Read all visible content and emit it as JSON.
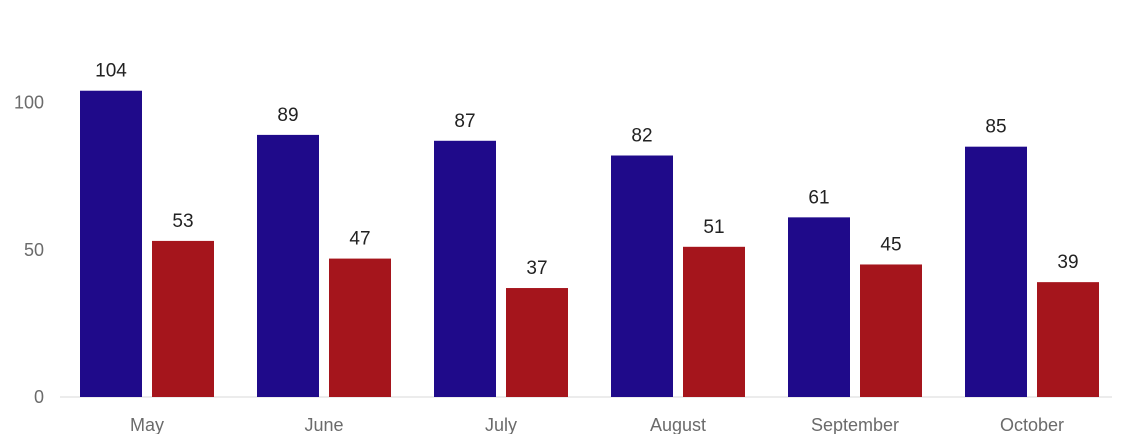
{
  "chart_data": {
    "type": "bar",
    "categories": [
      "May",
      "June",
      "July",
      "August",
      "September",
      "October"
    ],
    "series": [
      {
        "values": [
          104,
          89,
          87,
          82,
          61,
          85
        ],
        "color": "#1f0a8a"
      },
      {
        "values": [
          53,
          47,
          37,
          51,
          45,
          39
        ],
        "color": "#a5151c"
      }
    ],
    "y_ticks": [
      "0",
      "50",
      "100"
    ],
    "ylim": [
      0,
      100
    ],
    "grid": false,
    "legend": "none",
    "data_labels": true,
    "axis_color": "#e6e6e6"
  }
}
